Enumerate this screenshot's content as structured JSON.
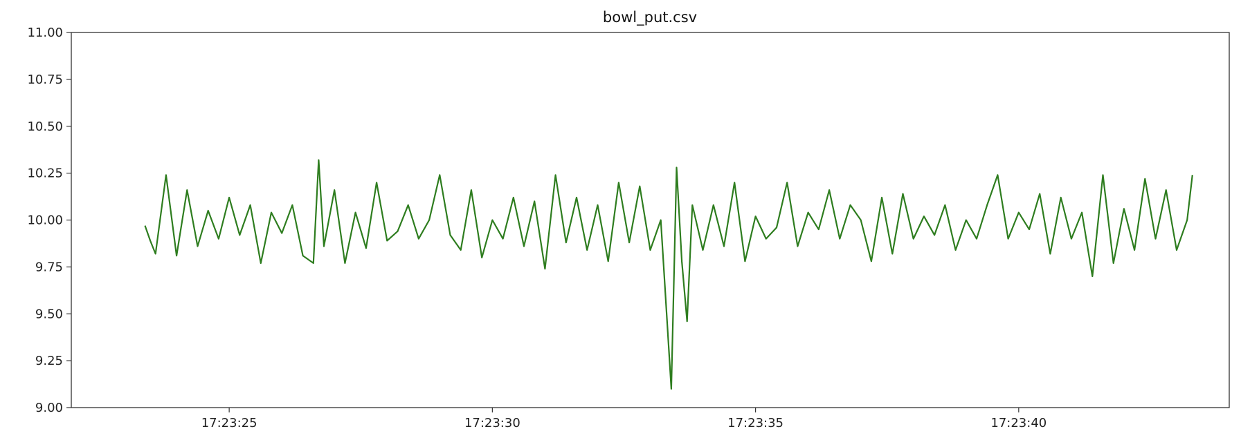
{
  "chart_data": {
    "type": "line",
    "title": "bowl_put.csv",
    "xlabel": "",
    "ylabel": "",
    "x_unit": "time",
    "x_start": "17:23:23.4",
    "x_end": "17:23:43.3",
    "xlim": [
      "17:23:22.0",
      "17:23:44.0"
    ],
    "ylim": [
      9.0,
      11.0
    ],
    "y_ticks": [
      "9.00",
      "9.25",
      "9.50",
      "9.75",
      "10.00",
      "10.25",
      "10.50",
      "10.75",
      "11.00"
    ],
    "x_ticks": [
      "17:23:25",
      "17:23:30",
      "17:23:35",
      "17:23:40"
    ],
    "grid": false,
    "legend": "none",
    "series": [
      {
        "color": "#2e7d1f",
        "x": [
          "17:23:23.4",
          "17:23:23.5",
          "17:23:23.6",
          "17:23:23.8",
          "17:23:24.0",
          "17:23:24.2",
          "17:23:24.4",
          "17:23:24.6",
          "17:23:24.8",
          "17:23:25.0",
          "17:23:25.2",
          "17:23:25.4",
          "17:23:25.6",
          "17:23:25.8",
          "17:23:26.0",
          "17:23:26.2",
          "17:23:26.4",
          "17:23:26.6",
          "17:23:26.7",
          "17:23:26.8",
          "17:23:27.0",
          "17:23:27.2",
          "17:23:27.4",
          "17:23:27.6",
          "17:23:27.8",
          "17:23:28.0",
          "17:23:28.2",
          "17:23:28.4",
          "17:23:28.6",
          "17:23:28.8",
          "17:23:29.0",
          "17:23:29.2",
          "17:23:29.4",
          "17:23:29.6",
          "17:23:29.8",
          "17:23:30.0",
          "17:23:30.2",
          "17:23:30.4",
          "17:23:30.6",
          "17:23:30.8",
          "17:23:31.0",
          "17:23:31.2",
          "17:23:31.4",
          "17:23:31.6",
          "17:23:31.8",
          "17:23:32.0",
          "17:23:32.2",
          "17:23:32.4",
          "17:23:32.6",
          "17:23:32.8",
          "17:23:33.0",
          "17:23:33.2",
          "17:23:33.4",
          "17:23:33.5",
          "17:23:33.6",
          "17:23:33.7",
          "17:23:33.8",
          "17:23:34.0",
          "17:23:34.2",
          "17:23:34.4",
          "17:23:34.6",
          "17:23:34.8",
          "17:23:35.0",
          "17:23:35.2",
          "17:23:35.4",
          "17:23:35.6",
          "17:23:35.8",
          "17:23:36.0",
          "17:23:36.2",
          "17:23:36.4",
          "17:23:36.6",
          "17:23:36.8",
          "17:23:37.0",
          "17:23:37.2",
          "17:23:37.4",
          "17:23:37.6",
          "17:23:37.8",
          "17:23:38.0",
          "17:23:38.2",
          "17:23:38.4",
          "17:23:38.6",
          "17:23:38.8",
          "17:23:39.0",
          "17:23:39.2",
          "17:23:39.4",
          "17:23:39.6",
          "17:23:39.8",
          "17:23:40.0",
          "17:23:40.2",
          "17:23:40.4",
          "17:23:40.6",
          "17:23:40.8",
          "17:23:41.0",
          "17:23:41.2",
          "17:23:41.4",
          "17:23:41.6",
          "17:23:41.8",
          "17:23:42.0",
          "17:23:42.2",
          "17:23:42.4",
          "17:23:42.6",
          "17:23:42.8",
          "17:23:43.0",
          "17:23:43.2",
          "17:23:43.3"
        ],
        "values": [
          9.97,
          9.89,
          9.82,
          10.24,
          9.81,
          10.16,
          9.86,
          10.05,
          9.9,
          10.12,
          9.92,
          10.08,
          9.77,
          10.04,
          9.93,
          10.08,
          9.81,
          9.77,
          10.32,
          9.86,
          10.16,
          9.77,
          10.04,
          9.85,
          10.2,
          9.89,
          9.94,
          10.08,
          9.9,
          10.0,
          10.24,
          9.92,
          9.84,
          10.16,
          9.8,
          10.0,
          9.9,
          10.12,
          9.86,
          10.1,
          9.74,
          10.24,
          9.88,
          10.12,
          9.84,
          10.08,
          9.78,
          10.2,
          9.88,
          10.18,
          9.84,
          10.0,
          9.1,
          10.28,
          9.78,
          9.46,
          10.08,
          9.84,
          10.08,
          9.86,
          10.2,
          9.78,
          10.02,
          9.9,
          9.96,
          10.2,
          9.86,
          10.04,
          9.95,
          10.16,
          9.9,
          10.08,
          10.0,
          9.78,
          10.12,
          9.82,
          10.14,
          9.9,
          10.02,
          9.92,
          10.08,
          9.84,
          10.0,
          9.9,
          10.08,
          10.24,
          9.9,
          10.04,
          9.95,
          10.14,
          9.82,
          10.12,
          9.9,
          10.04,
          9.7,
          10.24,
          9.77,
          10.06,
          9.84,
          10.22,
          9.9,
          10.16,
          9.84,
          10.0,
          10.24
        ]
      }
    ]
  }
}
